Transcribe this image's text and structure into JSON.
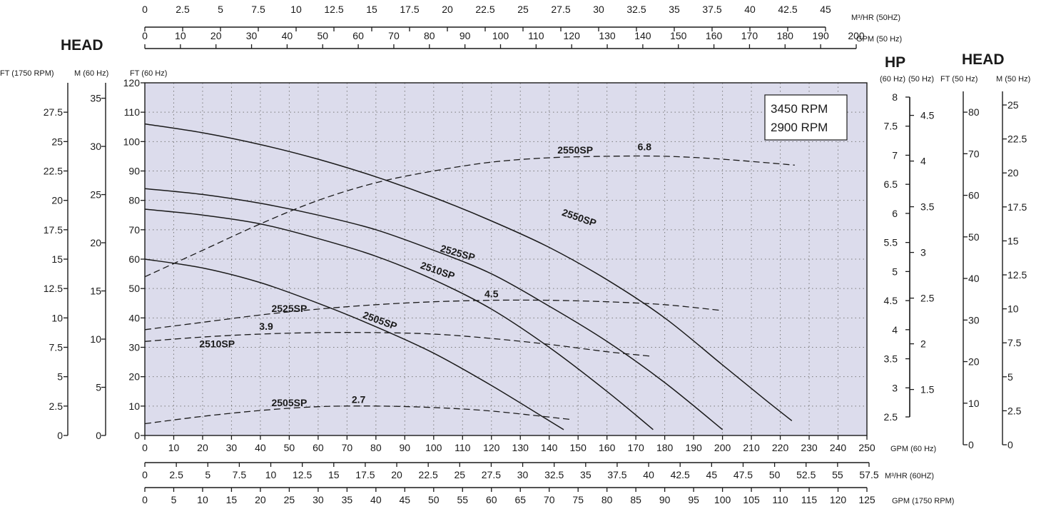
{
  "chart_data": {
    "type": "line",
    "background_color": "#dcdcec",
    "grid": true,
    "legend": {
      "position": "top-right",
      "lines": [
        "3450 RPM",
        "2900 RPM"
      ]
    },
    "headings": {
      "left_head": "HEAD",
      "right_head": "HEAD",
      "hp": "HP"
    },
    "x_axes": {
      "gpm60": {
        "label": "GPM (60 Hz)",
        "range": [
          0,
          250
        ],
        "ticks": [
          0,
          10,
          20,
          30,
          40,
          50,
          60,
          70,
          80,
          90,
          100,
          110,
          120,
          130,
          140,
          150,
          160,
          170,
          180,
          190,
          200,
          210,
          220,
          230,
          240,
          250
        ]
      },
      "m3hr60": {
        "label": "M³/HR (60HZ)",
        "range": [
          0,
          57.5
        ],
        "ticks": [
          "0",
          "2.5",
          "5",
          "7.5",
          "10",
          "12.5",
          "15",
          "17.5",
          "20",
          "22.5",
          "25",
          "27.5",
          "30",
          "32.5",
          "35",
          "37.5",
          "40",
          "42.5",
          "45",
          "47.5",
          "50",
          "52.5",
          "55",
          "57.5"
        ]
      },
      "gpm1750": {
        "label": "GPM (1750 RPM)",
        "range": [
          0,
          125
        ],
        "ticks": [
          0,
          5,
          10,
          15,
          20,
          25,
          30,
          35,
          40,
          45,
          50,
          55,
          60,
          65,
          70,
          75,
          80,
          85,
          90,
          95,
          100,
          105,
          110,
          115,
          120,
          125
        ]
      },
      "m3hr50": {
        "label": "M³/HR (50HZ)",
        "range": [
          0,
          45
        ],
        "ticks": [
          "0",
          "2.5",
          "5",
          "7.5",
          "10",
          "12.5",
          "15",
          "17.5",
          "20",
          "22.5",
          "25",
          "27.5",
          "30",
          "32.5",
          "35",
          "37.5",
          "40",
          "42.5",
          "45"
        ]
      },
      "gpm50": {
        "label": "GPM (50 Hz)",
        "range": [
          0,
          200
        ],
        "ticks": [
          0,
          10,
          20,
          30,
          40,
          50,
          60,
          70,
          80,
          90,
          100,
          110,
          120,
          130,
          140,
          150,
          160,
          170,
          180,
          190,
          200
        ]
      }
    },
    "y_axes": {
      "ft1750": {
        "label": "FT (1750 RPM)",
        "range": [
          0,
          30
        ],
        "ticks": [
          "0",
          "2.5",
          "5",
          "7.5",
          "10",
          "12.5",
          "15",
          "17.5",
          "20",
          "22.5",
          "25",
          "27.5"
        ]
      },
      "m60": {
        "label": "M (60 Hz)",
        "range": [
          0,
          36.6
        ],
        "ticks": [
          "0",
          "5",
          "10",
          "15",
          "20",
          "25",
          "30",
          "35"
        ]
      },
      "ft60": {
        "label": "FT (60 Hz)",
        "range": [
          0,
          120
        ],
        "ticks": [
          0,
          10,
          20,
          30,
          40,
          50,
          60,
          70,
          80,
          90,
          100,
          110,
          120
        ]
      },
      "hp60": {
        "label": "(60 Hz)",
        "range": [
          2.5,
          8
        ],
        "ticks": [
          "2.5",
          "3",
          "3.5",
          "4",
          "4.5",
          "5",
          "5.5",
          "6",
          "6.5",
          "7",
          "7.5",
          "8"
        ]
      },
      "hp50": {
        "label": "(50 Hz)",
        "range": [
          1.2,
          4.7
        ],
        "ticks": [
          "1.5",
          "2",
          "2.5",
          "3",
          "3.5",
          "4",
          "4.5"
        ]
      },
      "ft50": {
        "label": "FT (50 Hz)",
        "range": [
          0,
          85
        ],
        "ticks": [
          0,
          10,
          20,
          30,
          40,
          50,
          60,
          70,
          80
        ]
      },
      "m50": {
        "label": "M (50 Hz)",
        "range": [
          0,
          26
        ],
        "ticks": [
          "0",
          "2.5",
          "5",
          "7.5",
          "10",
          "12.5",
          "15",
          "17.5",
          "20",
          "22.5",
          "25"
        ]
      }
    },
    "series": [
      {
        "name": "2550SP",
        "kind": "head",
        "x_gpm60": [
          0,
          20,
          40,
          60,
          80,
          100,
          120,
          140,
          160,
          180,
          200,
          215,
          224
        ],
        "y_ft60": [
          106,
          103,
          99,
          94,
          88,
          81,
          73,
          64,
          53,
          40,
          24,
          12,
          5
        ]
      },
      {
        "name": "2525SP",
        "kind": "head",
        "x_gpm60": [
          0,
          20,
          40,
          60,
          80,
          100,
          120,
          140,
          160,
          180,
          200
        ],
        "y_ft60": [
          84,
          82,
          79,
          75,
          70,
          63,
          55,
          44,
          32,
          18,
          2
        ]
      },
      {
        "name": "2510SP",
        "kind": "head",
        "x_gpm60": [
          0,
          20,
          40,
          60,
          80,
          100,
          120,
          140,
          160,
          176
        ],
        "y_ft60": [
          77,
          75,
          72,
          67,
          61,
          53,
          43,
          30,
          15,
          2
        ]
      },
      {
        "name": "2505SP",
        "kind": "head",
        "x_gpm60": [
          0,
          20,
          40,
          60,
          80,
          100,
          120,
          140,
          145
        ],
        "y_ft60": [
          60,
          57,
          52,
          45,
          37,
          28,
          17,
          5,
          2
        ]
      },
      {
        "name": "2550SP",
        "kind": "hp",
        "annotation": "6.8",
        "x_gpm60": [
          0,
          20,
          40,
          60,
          80,
          100,
          120,
          140,
          160,
          180,
          200,
          225
        ],
        "y_ft60": [
          54,
          63,
          72,
          80,
          86,
          90,
          93,
          94.5,
          95,
          95,
          94,
          92
        ]
      },
      {
        "name": "2525SP",
        "kind": "hp",
        "annotation": "4.5",
        "x_gpm60": [
          0,
          20,
          40,
          60,
          80,
          100,
          120,
          140,
          160,
          180,
          200
        ],
        "y_ft60": [
          36,
          38.5,
          41,
          43,
          44.5,
          45.5,
          46,
          46,
          45.5,
          44.5,
          42.5
        ]
      },
      {
        "name": "2510SP",
        "kind": "hp",
        "annotation": "3.9",
        "x_gpm60": [
          0,
          20,
          40,
          60,
          80,
          100,
          120,
          140,
          160,
          175
        ],
        "y_ft60": [
          32,
          33.5,
          34.5,
          35,
          35,
          34.5,
          33,
          31,
          28.5,
          27
        ]
      },
      {
        "name": "2505SP",
        "kind": "hp",
        "annotation": "2.7",
        "x_gpm60": [
          0,
          20,
          40,
          60,
          80,
          100,
          120,
          147
        ],
        "y_ft60": [
          4,
          6.5,
          8.5,
          9.8,
          10,
          9.5,
          8.3,
          5.5
        ]
      }
    ],
    "curve_labels": [
      {
        "text": "2550SP",
        "x": 150,
        "y": 73,
        "angle": 19
      },
      {
        "text": "2525SP",
        "x": 108,
        "y": 61,
        "angle": 16
      },
      {
        "text": "2510SP",
        "x": 101,
        "y": 55,
        "angle": 19
      },
      {
        "text": "2505SP",
        "x": 81,
        "y": 38,
        "angle": 20
      },
      {
        "text": "2550SP",
        "x": 149,
        "y": 96,
        "angle": 0
      },
      {
        "text": "6.8",
        "x": 173,
        "y": 97,
        "angle": 0
      },
      {
        "text": "2525SP",
        "x": 50,
        "y": 42,
        "angle": 0
      },
      {
        "text": "4.5",
        "x": 120,
        "y": 47,
        "angle": 0
      },
      {
        "text": "3.9",
        "x": 42,
        "y": 36,
        "angle": 0
      },
      {
        "text": "2510SP",
        "x": 25,
        "y": 30,
        "angle": 0
      },
      {
        "text": "2505SP",
        "x": 50,
        "y": 10,
        "angle": 0
      },
      {
        "text": "2.7",
        "x": 74,
        "y": 11,
        "angle": 0
      }
    ]
  }
}
